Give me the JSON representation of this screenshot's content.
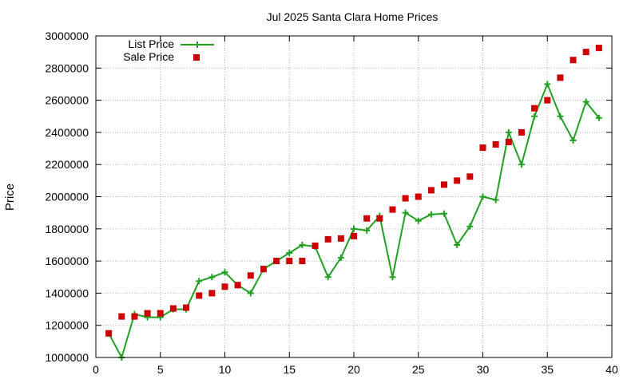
{
  "chart_data": {
    "type": "line",
    "title": "Jul 2025 Santa Clara Home Prices",
    "xlabel": "",
    "ylabel": "Price",
    "xlim": [
      0,
      40
    ],
    "ylim": [
      1000000,
      3000000
    ],
    "xticks": [
      "0",
      "5",
      "10",
      "15",
      "20",
      "25",
      "30",
      "35",
      "40"
    ],
    "yticks": [
      "1000000",
      "1200000",
      "1400000",
      "1600000",
      "1800000",
      "2000000",
      "2200000",
      "2400000",
      "2600000",
      "2800000",
      "3000000"
    ],
    "grid": true,
    "legend_position": "top-left",
    "series": [
      {
        "name": "List Price",
        "style": "line-cross",
        "color": "#22a022",
        "x": [
          1,
          2,
          3,
          4,
          5,
          6,
          7,
          8,
          9,
          10,
          11,
          12,
          13,
          14,
          15,
          16,
          17,
          18,
          19,
          20,
          21,
          22,
          23,
          24,
          25,
          26,
          27,
          28,
          29,
          30,
          31,
          32,
          33,
          34,
          35,
          36,
          37,
          38,
          39
        ],
        "y": [
          1150000,
          1000000,
          1270000,
          1250000,
          1250000,
          1300000,
          1300000,
          1475000,
          1500000,
          1530000,
          1450000,
          1400000,
          1550000,
          1600000,
          1650000,
          1700000,
          1690000,
          1500000,
          1620000,
          1800000,
          1790000,
          1880000,
          1500000,
          1900000,
          1850000,
          1890000,
          1895000,
          1700000,
          1815000,
          2000000,
          1980000,
          2400000,
          2200000,
          2500000,
          2700000,
          2500000,
          2350000,
          2590000,
          2490000
        ]
      },
      {
        "name": "Sale Price",
        "style": "square",
        "color": "#cc0000",
        "x": [
          1,
          2,
          3,
          4,
          5,
          6,
          7,
          8,
          9,
          10,
          11,
          12,
          13,
          14,
          15,
          16,
          17,
          18,
          19,
          20,
          21,
          22,
          23,
          24,
          25,
          26,
          27,
          28,
          29,
          30,
          31,
          32,
          33,
          34,
          35,
          36,
          37,
          38,
          39
        ],
        "y": [
          1150000,
          1255000,
          1255000,
          1275000,
          1275000,
          1305000,
          1310000,
          1385000,
          1400000,
          1440000,
          1450000,
          1510000,
          1550000,
          1600000,
          1600000,
          1600000,
          1695000,
          1735000,
          1740000,
          1755000,
          1865000,
          1865000,
          1920000,
          1990000,
          2000000,
          2040000,
          2075000,
          2100000,
          2125000,
          2305000,
          2325000,
          2340000,
          2400000,
          2550000,
          2600000,
          2740000,
          2850000,
          2900000,
          2925000
        ]
      }
    ]
  }
}
